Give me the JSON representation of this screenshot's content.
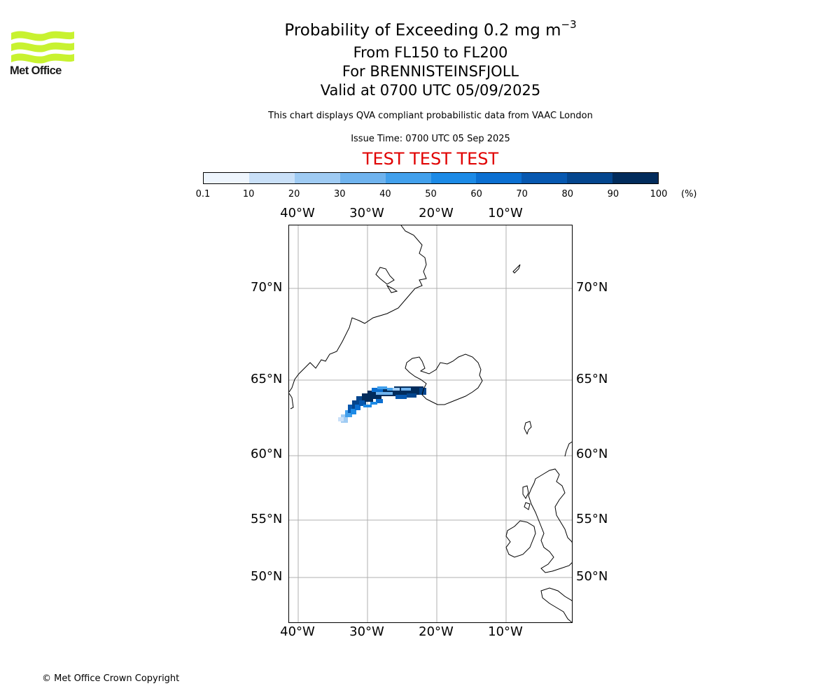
{
  "logo": {
    "text": "Met Office",
    "color": "#c8f230"
  },
  "title": {
    "line1": "Probability of Exceeding 0.2 mg m",
    "line1_exponent": "−3",
    "line2": "From FL150 to FL200",
    "line3": "For BRENNISTEINSFJOLL",
    "line4": "Valid at 0700 UTC 05/09/2025"
  },
  "disclaimer": "This chart displays QVA compliant probabilistic data from VAAC London",
  "issue_time": "Issue Time: 0700 UTC 05 Sep 2025",
  "test_banner": "TEST TEST TEST",
  "colorbar": {
    "ticks": [
      "0.1",
      "10",
      "20",
      "30",
      "40",
      "50",
      "60",
      "70",
      "80",
      "90",
      "100"
    ],
    "unit": "(%)",
    "colors": [
      "#eef5fd",
      "#c9e0f8",
      "#9fcbf3",
      "#6fb3ee",
      "#42a0ec",
      "#1c8ae6",
      "#0b6fd1",
      "#0758b0",
      "#04468e",
      "#022c5c"
    ]
  },
  "map": {
    "lon_labels": [
      "40°W",
      "30°W",
      "20°W",
      "10°W"
    ],
    "lat_labels": [
      "70°N",
      "65°N",
      "60°N",
      "55°N",
      "50°N"
    ]
  },
  "copyright": "© Met Office Crown Copyright"
}
